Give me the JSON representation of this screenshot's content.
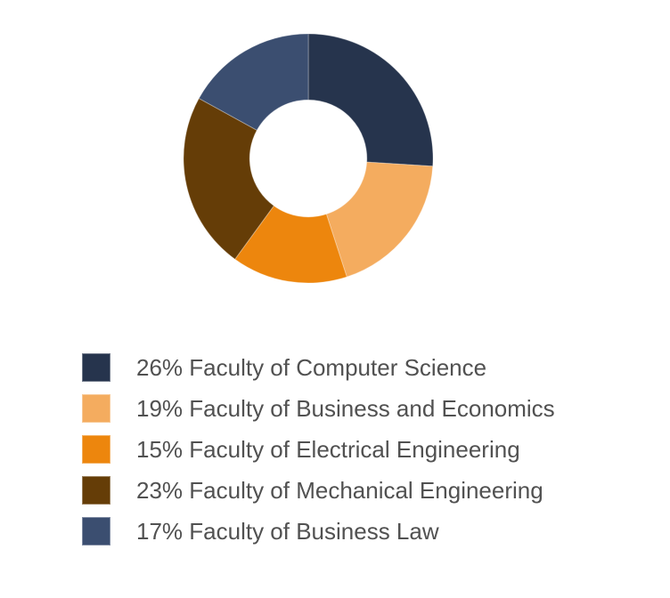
{
  "chart_data": {
    "type": "pie",
    "subtype": "donut",
    "title": "",
    "categories": [
      "Faculty of Computer Science",
      "Faculty of Business and Economics",
      "Faculty of Electrical Engineering",
      "Faculty of Mechanical Engineering",
      "Faculty of Business Law"
    ],
    "values": [
      26,
      19,
      15,
      23,
      17
    ],
    "value_unit": "%",
    "colors": [
      "#26344D",
      "#F4AC5F",
      "#ED860D",
      "#653D07",
      "#3B4E70"
    ],
    "start_angle_deg": 0,
    "direction": "clockwise",
    "donut_hole_ratio": 0.47,
    "hole_color": "#FFFFFF",
    "background": "#FFFFFF",
    "grid": "off",
    "legend": {
      "position": "bottom-left",
      "text_color": "#515151",
      "entries": [
        "26% Faculty of Computer Science",
        "19% Faculty of Business and Economics",
        "15% Faculty of Electrical Engineering",
        "23% Faculty of Mechanical Engineering",
        "17% Faculty of Business Law"
      ]
    }
  }
}
